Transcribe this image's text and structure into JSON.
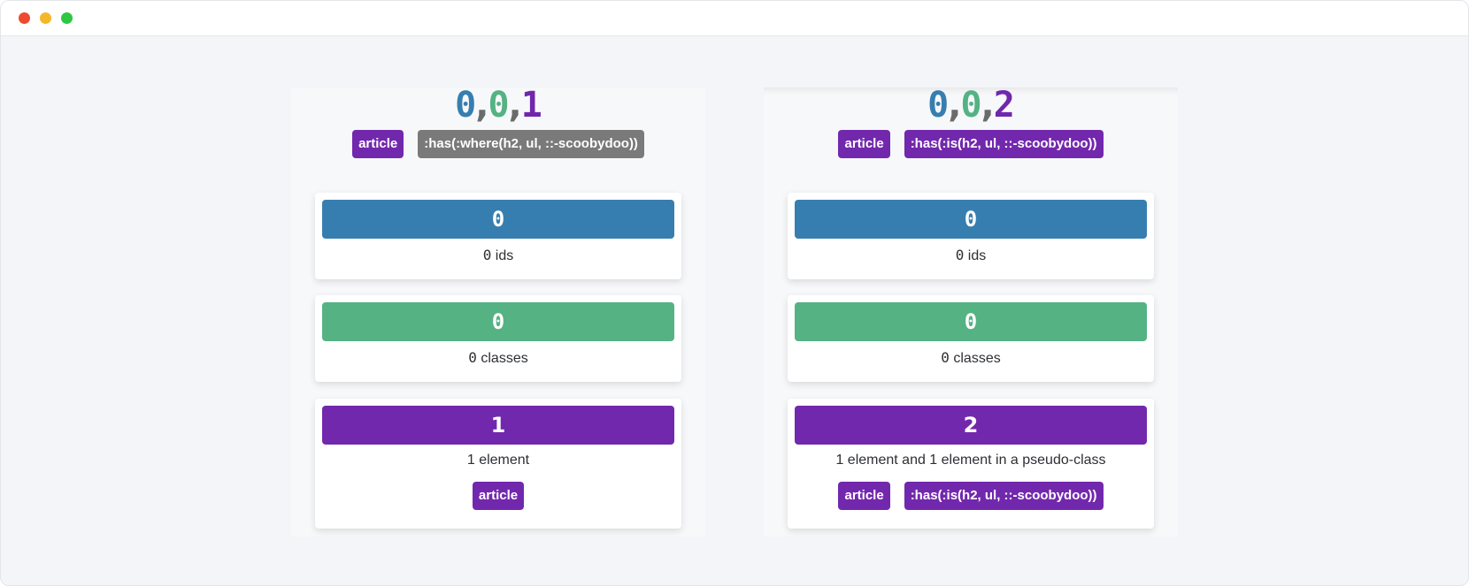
{
  "left": {
    "score": {
      "ids": "0",
      "classes": "0",
      "elements": "1"
    },
    "selector": {
      "element": "article",
      "pseudo": ":has(:where(h2, ul, ::-scoobydoo))"
    },
    "ids_card": {
      "value": "0",
      "count": "0",
      "label": " ids"
    },
    "classes_card": {
      "value": "0",
      "count": "0",
      "label": " classes"
    },
    "elements_card": {
      "value": "1",
      "caption": "1 element",
      "tag": "article"
    }
  },
  "right": {
    "score": {
      "ids": "0",
      "classes": "0",
      "elements": "2"
    },
    "selector": {
      "element": "article",
      "pseudo": ":has(:is(h2, ul, ::-scoobydoo))"
    },
    "ids_card": {
      "value": "0",
      "count": "0",
      "label": " ids"
    },
    "classes_card": {
      "value": "0",
      "count": "0",
      "label": " classes"
    },
    "elements_card": {
      "value": "2",
      "caption": "1 element and 1 element in a pseudo-class",
      "tag1": "article",
      "tag2": ":has(:is(h2, ul, ::-scoobydoo))"
    }
  },
  "colors": {
    "ids": "#377eb0",
    "classes": "#55b283",
    "elements": "#7228ad",
    "neutral": "#7a7a7a"
  }
}
